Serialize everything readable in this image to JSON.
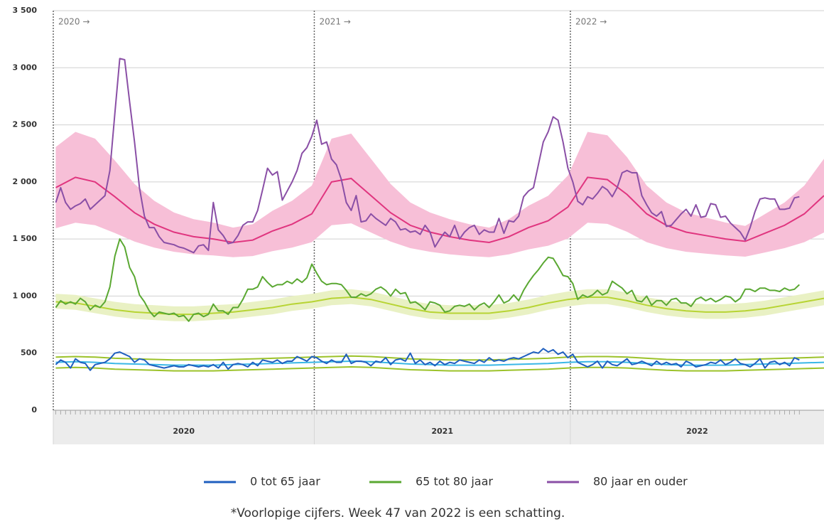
{
  "chart_data": {
    "type": "line",
    "ylim": [
      0,
      3500
    ],
    "yticks": [
      0,
      500,
      {
        "value": 1000,
        "label": "1 000"
      },
      {
        "value": 1500,
        "label": "1 500"
      },
      {
        "value": 2000,
        "label": "2 000"
      },
      {
        "value": 2500,
        "label": "2 500"
      },
      {
        "value": 3000,
        "label": "3 000"
      },
      {
        "value": 3500,
        "label": "3 500"
      }
    ],
    "xlim": [
      0.5,
      157
    ],
    "xticks": [
      {
        "value": 0.5,
        "label": "2020"
      },
      {
        "value": 53.5,
        "label": "2021"
      },
      {
        "value": 105.5,
        "label": "2022"
      }
    ],
    "annotations": [
      {
        "text": "2020 →",
        "x": 0.5
      },
      {
        "text": "2021 →",
        "x": 53.5
      },
      {
        "text": "2022 →",
        "x": 105.5
      }
    ],
    "grid": true,
    "x": [
      1,
      2,
      3,
      4,
      5,
      6,
      7,
      8,
      9,
      10,
      11,
      12,
      13,
      14,
      15,
      16,
      17,
      18,
      19,
      20,
      21,
      22,
      23,
      24,
      25,
      26,
      27,
      28,
      29,
      30,
      31,
      32,
      33,
      34,
      35,
      36,
      37,
      38,
      39,
      40,
      41,
      42,
      43,
      44,
      45,
      46,
      47,
      48,
      49,
      50,
      51,
      52,
      53,
      54,
      55,
      56,
      57,
      58,
      59,
      60,
      61,
      62,
      63,
      64,
      65,
      66,
      67,
      68,
      69,
      70,
      71,
      72,
      73,
      74,
      75,
      76,
      77,
      78,
      79,
      80,
      81,
      82,
      83,
      84,
      85,
      86,
      87,
      88,
      89,
      90,
      91,
      92,
      93,
      94,
      95,
      96,
      97,
      98,
      99,
      100,
      101,
      102,
      103,
      104,
      105,
      106,
      107,
      108,
      109,
      110,
      111,
      112,
      113,
      114,
      115,
      116,
      117,
      118,
      119,
      120,
      121,
      122,
      123,
      124,
      125,
      126,
      127,
      128,
      129,
      130,
      131,
      132,
      133,
      134,
      135,
      136,
      137,
      138,
      139,
      140,
      141,
      142,
      143,
      144,
      145,
      146,
      147,
      148,
      149,
      150,
      151,
      152
    ],
    "series": [
      {
        "name": "0 tot 65 jaar",
        "color": "#1f5fbf",
        "values": [
          400,
          440,
          420,
          370,
          450,
          420,
          410,
          350,
          400,
          410,
          420,
          450,
          500,
          510,
          490,
          470,
          420,
          450,
          440,
          400,
          390,
          380,
          370,
          380,
          390,
          380,
          380,
          400,
          390,
          380,
          390,
          380,
          400,
          370,
          420,
          360,
          400,
          410,
          400,
          380,
          420,
          390,
          440,
          430,
          420,
          440,
          410,
          430,
          430,
          470,
          450,
          430,
          470,
          460,
          430,
          410,
          440,
          420,
          420,
          490,
          410,
          430,
          430,
          420,
          390,
          430,
          420,
          460,
          400,
          440,
          450,
          430,
          500,
          410,
          440,
          400,
          420,
          390,
          430,
          400,
          420,
          410,
          440,
          430,
          420,
          410,
          440,
          420,
          460,
          430,
          440,
          430,
          450,
          460,
          450,
          470,
          490,
          510,
          500,
          540,
          510,
          530,
          490,
          510,
          460,
          490,
          420,
          400,
          380,
          400,
          430,
          370,
          430,
          400,
          390,
          420,
          450,
          400,
          410,
          430,
          410,
          390,
          430,
          400,
          420,
          400,
          410,
          380,
          430,
          410,
          380,
          390,
          400,
          420,
          410,
          440,
          400,
          420,
          450,
          410,
          400,
          380,
          410,
          450,
          370,
          420,
          430,
          400,
          420,
          390,
          460,
          440
        ]
      },
      {
        "name": "65 tot 80 jaar",
        "color": "#5aa832",
        "values": [
          900,
          960,
          930,
          950,
          930,
          980,
          950,
          880,
          920,
          900,
          950,
          1080,
          1350,
          1500,
          1430,
          1250,
          1170,
          1010,
          950,
          870,
          820,
          860,
          850,
          840,
          850,
          820,
          830,
          780,
          840,
          850,
          820,
          840,
          930,
          870,
          870,
          840,
          900,
          900,
          970,
          1060,
          1060,
          1080,
          1170,
          1120,
          1080,
          1100,
          1100,
          1130,
          1110,
          1150,
          1120,
          1160,
          1280,
          1200,
          1130,
          1100,
          1110,
          1110,
          1100,
          1050,
          990,
          990,
          1020,
          1000,
          1020,
          1060,
          1080,
          1050,
          1000,
          1060,
          1020,
          1030,
          940,
          950,
          920,
          880,
          950,
          940,
          920,
          860,
          870,
          910,
          920,
          910,
          930,
          880,
          920,
          940,
          900,
          950,
          1010,
          940,
          960,
          1010,
          960,
          1050,
          1120,
          1180,
          1230,
          1290,
          1340,
          1330,
          1260,
          1180,
          1170,
          1110,
          970,
          1010,
          990,
          1010,
          1050,
          1010,
          1030,
          1130,
          1100,
          1070,
          1020,
          1050,
          960,
          950,
          1000,
          920,
          960,
          960,
          920,
          970,
          980,
          940,
          940,
          910,
          970,
          990,
          960,
          980,
          950,
          970,
          1000,
          990,
          950,
          980,
          1060,
          1060,
          1040,
          1070,
          1070,
          1050,
          1050,
          1040,
          1070,
          1050,
          1060,
          1100
        ]
      },
      {
        "name": "80 jaar en ouder",
        "color": "#8a4fa6",
        "values": [
          1820,
          1950,
          1820,
          1760,
          1790,
          1810,
          1850,
          1760,
          1800,
          1840,
          1880,
          2100,
          2600,
          3080,
          3070,
          2700,
          2350,
          1950,
          1700,
          1600,
          1600,
          1520,
          1470,
          1460,
          1450,
          1430,
          1420,
          1400,
          1380,
          1440,
          1450,
          1400,
          1820,
          1580,
          1530,
          1460,
          1470,
          1530,
          1620,
          1650,
          1650,
          1750,
          1930,
          2120,
          2060,
          2090,
          1840,
          1920,
          2000,
          2100,
          2250,
          2300,
          2400,
          2540,
          2330,
          2350,
          2200,
          2150,
          2020,
          1820,
          1750,
          1880,
          1650,
          1660,
          1720,
          1680,
          1650,
          1620,
          1680,
          1650,
          1580,
          1590,
          1560,
          1570,
          1540,
          1620,
          1560,
          1430,
          1500,
          1560,
          1520,
          1620,
          1500,
          1560,
          1600,
          1620,
          1540,
          1580,
          1560,
          1560,
          1680,
          1550,
          1660,
          1650,
          1700,
          1870,
          1920,
          1950,
          2150,
          2350,
          2440,
          2570,
          2540,
          2350,
          2120,
          2000,
          1830,
          1800,
          1870,
          1850,
          1900,
          1960,
          1930,
          1870,
          1950,
          2080,
          2100,
          2080,
          2080,
          1880,
          1800,
          1730,
          1700,
          1740,
          1610,
          1620,
          1670,
          1720,
          1760,
          1700,
          1800,
          1690,
          1700,
          1810,
          1800,
          1690,
          1700,
          1640,
          1600,
          1560,
          1490,
          1600,
          1740,
          1850,
          1860,
          1850,
          1850,
          1760,
          1760,
          1770,
          1860,
          1870
        ]
      }
    ],
    "expected_x": [
      1,
      5,
      9,
      13,
      17,
      21,
      25,
      29,
      33,
      37,
      41,
      45,
      49,
      53,
      57,
      61,
      65,
      69,
      73,
      77,
      81,
      85,
      89,
      93,
      97,
      101,
      105,
      109,
      113,
      117,
      121,
      125,
      129,
      133,
      137,
      141,
      145,
      149,
      153,
      157
    ],
    "expected": [
      {
        "color": "#3ab7e6",
        "band_line": "#9cc22a",
        "values": [
          420,
          425,
          420,
          410,
          405,
          400,
          395,
          395,
          395,
          400,
          405,
          410,
          415,
          420,
          425,
          430,
          425,
          415,
          405,
          400,
          395,
          395,
          395,
          400,
          405,
          410,
          420,
          425,
          425,
          420,
          410,
          400,
          395,
          395,
          395,
          400,
          405,
          410,
          415,
          420
        ],
        "upper": [
          465,
          470,
          465,
          455,
          450,
          445,
          440,
          440,
          440,
          445,
          450,
          455,
          460,
          465,
          470,
          475,
          470,
          460,
          450,
          445,
          440,
          440,
          440,
          445,
          450,
          455,
          465,
          470,
          470,
          465,
          455,
          445,
          440,
          440,
          440,
          445,
          450,
          455,
          460,
          465
        ],
        "lower": [
          370,
          375,
          370,
          360,
          355,
          350,
          345,
          345,
          345,
          350,
          355,
          360,
          365,
          370,
          375,
          380,
          375,
          365,
          355,
          350,
          345,
          345,
          345,
          350,
          355,
          360,
          370,
          375,
          375,
          370,
          360,
          350,
          345,
          345,
          345,
          350,
          355,
          360,
          365,
          370
        ]
      },
      {
        "color": "#b7d433",
        "band_fill": "#e9f1c4",
        "values": [
          950,
          940,
          910,
          880,
          860,
          850,
          840,
          840,
          850,
          860,
          880,
          900,
          930,
          950,
          980,
          990,
          970,
          930,
          890,
          860,
          850,
          850,
          850,
          870,
          900,
          940,
          970,
          990,
          990,
          960,
          920,
          890,
          870,
          860,
          860,
          870,
          890,
          920,
          950,
          980
        ],
        "upper": [
          1020,
          1010,
          980,
          950,
          930,
          920,
          910,
          910,
          920,
          930,
          950,
          970,
          1000,
          1020,
          1050,
          1060,
          1040,
          1000,
          960,
          930,
          920,
          920,
          920,
          940,
          970,
          1010,
          1040,
          1060,
          1060,
          1030,
          990,
          960,
          940,
          930,
          930,
          940,
          960,
          990,
          1020,
          1050
        ],
        "lower": [
          890,
          880,
          850,
          820,
          800,
          790,
          780,
          780,
          790,
          800,
          820,
          840,
          870,
          890,
          920,
          930,
          910,
          870,
          830,
          800,
          790,
          790,
          790,
          810,
          840,
          880,
          910,
          930,
          930,
          900,
          860,
          830,
          810,
          800,
          800,
          810,
          830,
          860,
          890,
          920
        ]
      },
      {
        "color": "#e0357f",
        "band_fill": "#f7bfd7",
        "values": [
          1950,
          2040,
          2000,
          1870,
          1730,
          1630,
          1560,
          1520,
          1500,
          1470,
          1490,
          1570,
          1630,
          1720,
          2000,
          2030,
          1880,
          1730,
          1620,
          1560,
          1520,
          1490,
          1470,
          1520,
          1600,
          1660,
          1780,
          2040,
          2020,
          1890,
          1720,
          1620,
          1560,
          1530,
          1500,
          1480,
          1550,
          1620,
          1720,
          1880
        ],
        "upper": [
          2306,
          2438,
          2379,
          2188,
          1982,
          1835,
          1732,
          1674,
          1644,
          1600,
          1629,
          1747,
          1835,
          1968,
          2379,
          2423,
          2203,
          1982,
          1820,
          1732,
          1674,
          1629,
          1600,
          1674,
          1791,
          1879,
          2056,
          2438,
          2408,
          2217,
          1968,
          1820,
          1732,
          1688,
          1644,
          1615,
          1718,
          1820,
          1968,
          2203
        ],
        "lower": [
          1594,
          1642,
          1621,
          1552,
          1478,
          1425,
          1388,
          1366,
          1356,
          1340,
          1351,
          1393,
          1425,
          1472,
          1621,
          1637,
          1557,
          1478,
          1420,
          1388,
          1366,
          1351,
          1340,
          1366,
          1409,
          1441,
          1504,
          1642,
          1632,
          1563,
          1472,
          1420,
          1388,
          1372,
          1356,
          1345,
          1382,
          1420,
          1472,
          1557
        ]
      }
    ],
    "footnote": "*Voorlopige cijfers. Week 47 van 2022 is een schatting."
  }
}
